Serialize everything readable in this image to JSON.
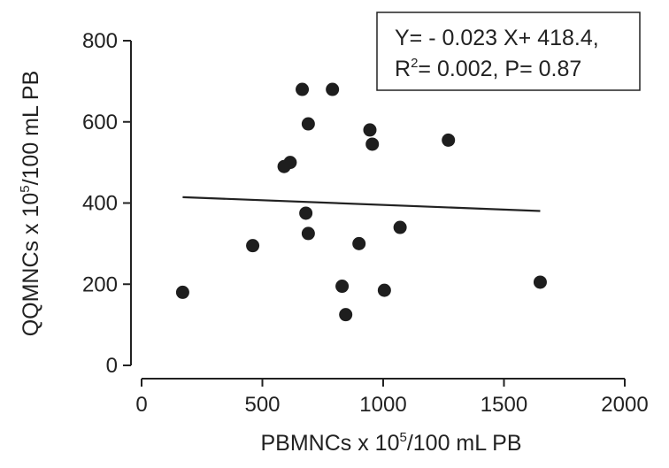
{
  "chart_data": {
    "type": "scatter",
    "xlabel": {
      "pre": "PBMNCs  x 10",
      "sup": "5",
      "post": "/100 mL PB"
    },
    "ylabel": {
      "pre": "QQMNCs x 10",
      "sup": "5",
      "post": "/100 mL PB"
    },
    "xlim": [
      0,
      2000
    ],
    "ylim": [
      0,
      800
    ],
    "xticks": [
      0,
      500,
      1000,
      1500,
      2000
    ],
    "yticks": [
      0,
      200,
      400,
      600,
      800
    ],
    "grid": false,
    "points": [
      {
        "x": 170,
        "y": 180
      },
      {
        "x": 460,
        "y": 295
      },
      {
        "x": 590,
        "y": 490
      },
      {
        "x": 615,
        "y": 500
      },
      {
        "x": 665,
        "y": 680
      },
      {
        "x": 680,
        "y": 375
      },
      {
        "x": 690,
        "y": 595
      },
      {
        "x": 690,
        "y": 325
      },
      {
        "x": 790,
        "y": 680
      },
      {
        "x": 830,
        "y": 195
      },
      {
        "x": 845,
        "y": 125
      },
      {
        "x": 900,
        "y": 300
      },
      {
        "x": 945,
        "y": 580
      },
      {
        "x": 955,
        "y": 545
      },
      {
        "x": 1005,
        "y": 185
      },
      {
        "x": 1070,
        "y": 340
      },
      {
        "x": 1270,
        "y": 555
      },
      {
        "x": 1650,
        "y": 205
      }
    ],
    "regression": {
      "slope": -0.023,
      "intercept": 418.4,
      "x_range": [
        170,
        1650
      ]
    },
    "annotation": {
      "line1": "Y= - 0.023 X+ 418.4,",
      "line2_pre": "R",
      "line2_sup": "2",
      "line2_post": "= 0.002, P= 0.87"
    }
  }
}
